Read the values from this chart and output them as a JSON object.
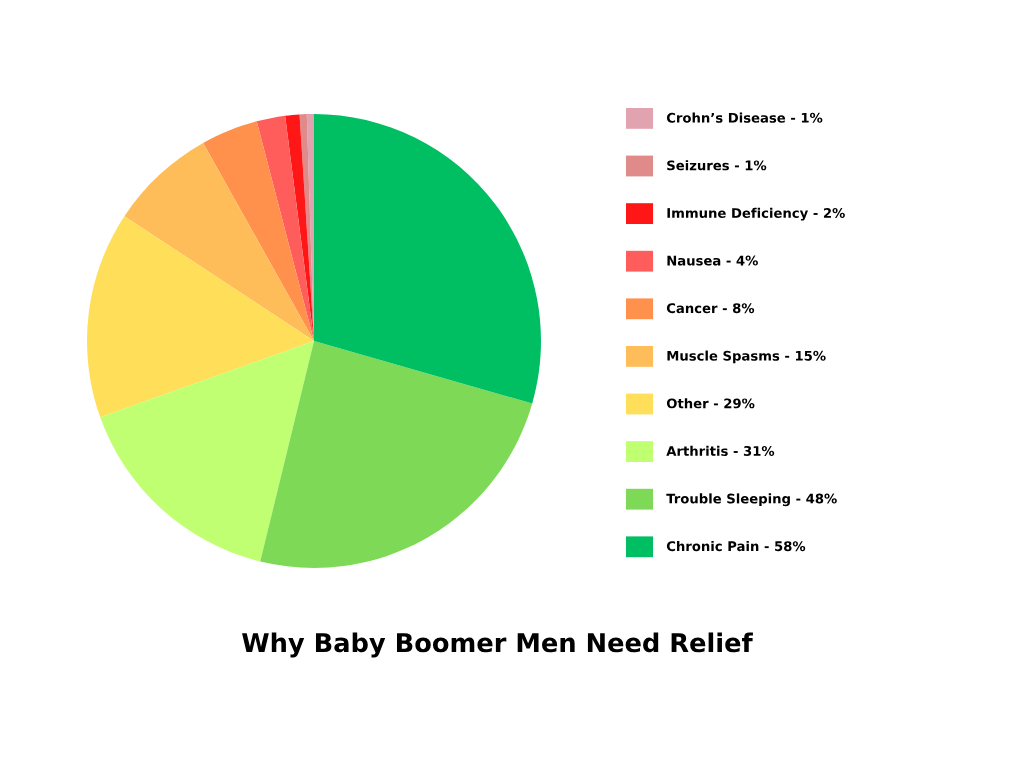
{
  "chart_data": {
    "type": "pie",
    "title": "Why Baby Boomer Men Need Relief",
    "categories": [
      "Crohn’s Disease",
      "Seizures",
      "Immune Deficiency",
      "Nausea",
      "Cancer",
      "Muscle Spasms",
      "Other",
      "Arthritis",
      "Trouble Sleeping",
      "Chronic Pain"
    ],
    "values": [
      1,
      1,
      2,
      4,
      8,
      15,
      29,
      31,
      48,
      58
    ],
    "value_labels": [
      "1%",
      "1%",
      "2%",
      "4%",
      "8%",
      "15%",
      "29%",
      "31%",
      "48%",
      "58%"
    ],
    "colors": [
      "#e2a3b0",
      "#e08a8a",
      "#ff1616",
      "#ff5c5c",
      "#ff914d",
      "#ffbd59",
      "#ffde59",
      "#c1ff72",
      "#7ed957",
      "#00bf63"
    ],
    "legend": "right"
  }
}
